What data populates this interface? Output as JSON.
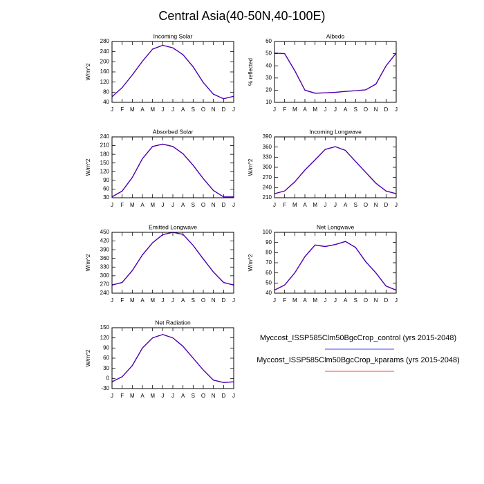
{
  "title": "Central Asia(40-50N,40-100E)",
  "chart_data": [
    {
      "type": "line",
      "title": "Incoming Solar",
      "ylabel": "W/m^2",
      "categories": [
        "J",
        "F",
        "M",
        "A",
        "M",
        "J",
        "J",
        "A",
        "S",
        "O",
        "N",
        "D",
        "J"
      ],
      "ylim": [
        40,
        280
      ],
      "yticks": [
        40,
        80,
        120,
        160,
        200,
        240,
        280
      ],
      "series": [
        {
          "name": "Myccost_ISSP585Clm50BgcCrop_control (yrs 2015-2048)",
          "color": "#0000ff",
          "values": [
            62,
            98,
            148,
            202,
            250,
            265,
            255,
            228,
            180,
            118,
            72,
            54,
            64
          ]
        },
        {
          "name": "Myccost_ISSP585Clm50BgcCrop_kparams (yrs 2015-2048)",
          "color": "#ff0000",
          "values": [
            62,
            98,
            148,
            202,
            250,
            265,
            255,
            228,
            180,
            118,
            72,
            54,
            64
          ]
        }
      ]
    },
    {
      "type": "line",
      "title": "Albedo",
      "ylabel": "% reflected",
      "categories": [
        "J",
        "F",
        "M",
        "A",
        "M",
        "J",
        "J",
        "A",
        "S",
        "O",
        "N",
        "D",
        "J"
      ],
      "ylim": [
        10,
        60
      ],
      "yticks": [
        10,
        20,
        30,
        40,
        50,
        60
      ],
      "series": [
        {
          "color": "#0000ff",
          "values": [
            50.5,
            50,
            36,
            20,
            17.5,
            17.8,
            18.2,
            19,
            19.5,
            20.3,
            25,
            40,
            50.5
          ]
        },
        {
          "color": "#ff0000",
          "values": [
            50.5,
            50,
            36,
            20,
            17.5,
            17.8,
            18.2,
            19,
            19.5,
            20.3,
            25,
            40,
            50.5
          ]
        }
      ]
    },
    {
      "type": "line",
      "title": "Absorbed Solar",
      "ylabel": "W/m^2",
      "categories": [
        "J",
        "F",
        "M",
        "A",
        "M",
        "J",
        "J",
        "A",
        "S",
        "O",
        "N",
        "D",
        "J"
      ],
      "ylim": [
        30,
        240
      ],
      "yticks": [
        30,
        60,
        90,
        120,
        150,
        180,
        210,
        240
      ],
      "series": [
        {
          "color": "#0000ff",
          "values": [
            33,
            53,
            100,
            165,
            207,
            215,
            207,
            182,
            142,
            96,
            55,
            33,
            33
          ]
        },
        {
          "color": "#ff0000",
          "values": [
            33,
            53,
            100,
            165,
            207,
            215,
            207,
            182,
            142,
            96,
            55,
            33,
            33
          ]
        }
      ]
    },
    {
      "type": "line",
      "title": "Incoming Longwave",
      "ylabel": "W/m^2",
      "categories": [
        "J",
        "F",
        "M",
        "A",
        "M",
        "J",
        "J",
        "A",
        "S",
        "O",
        "N",
        "D",
        "J"
      ],
      "ylim": [
        210,
        390
      ],
      "yticks": [
        210,
        240,
        270,
        300,
        330,
        360,
        390
      ],
      "series": [
        {
          "color": "#0000ff",
          "values": [
            222,
            230,
            257,
            292,
            322,
            353,
            361,
            350,
            317,
            285,
            253,
            230,
            222
          ]
        },
        {
          "color": "#ff0000",
          "values": [
            222,
            230,
            257,
            292,
            322,
            353,
            361,
            350,
            317,
            285,
            253,
            230,
            222
          ]
        }
      ]
    },
    {
      "type": "line",
      "title": "Emitted Longwave",
      "ylabel": "W/m^2",
      "categories": [
        "J",
        "F",
        "M",
        "A",
        "M",
        "J",
        "J",
        "A",
        "S",
        "O",
        "N",
        "D",
        "J"
      ],
      "ylim": [
        240,
        450
      ],
      "yticks": [
        240,
        270,
        300,
        330,
        360,
        390,
        420,
        450
      ],
      "series": [
        {
          "color": "#0000ff",
          "values": [
            268,
            277,
            318,
            372,
            414,
            442,
            450,
            443,
            405,
            358,
            313,
            277,
            268
          ]
        },
        {
          "color": "#ff0000",
          "values": [
            268,
            277,
            318,
            372,
            414,
            442,
            450,
            443,
            405,
            358,
            313,
            277,
            268
          ]
        }
      ]
    },
    {
      "type": "line",
      "title": "Net Longwave",
      "ylabel": "W/m^2",
      "categories": [
        "J",
        "F",
        "M",
        "A",
        "M",
        "J",
        "J",
        "A",
        "S",
        "O",
        "N",
        "D",
        "J"
      ],
      "ylim": [
        40,
        100
      ],
      "yticks": [
        40,
        50,
        60,
        70,
        80,
        90,
        100
      ],
      "series": [
        {
          "color": "#0000ff",
          "values": [
            43,
            48,
            60,
            76,
            87.5,
            86,
            88,
            91,
            85,
            71,
            60,
            47,
            43
          ]
        },
        {
          "color": "#ff0000",
          "values": [
            43,
            48,
            60,
            76,
            87.5,
            86,
            88,
            91,
            85,
            71,
            60,
            47,
            43
          ]
        }
      ]
    },
    {
      "type": "line",
      "title": "Net Radiation",
      "ylabel": "W/m^2",
      "categories": [
        "J",
        "F",
        "M",
        "A",
        "M",
        "J",
        "J",
        "A",
        "S",
        "O",
        "N",
        "D",
        "J"
      ],
      "ylim": [
        -30,
        150
      ],
      "yticks": [
        -30,
        0,
        30,
        60,
        90,
        120,
        150
      ],
      "series": [
        {
          "color": "#0000ff",
          "values": [
            -10,
            5,
            38,
            90,
            120,
            130,
            120,
            95,
            60,
            25,
            -5,
            -12,
            -10
          ]
        },
        {
          "color": "#ff0000",
          "values": [
            -10,
            5,
            38,
            90,
            120,
            130,
            120,
            95,
            60,
            25,
            -5,
            -12,
            -10
          ]
        }
      ]
    }
  ]
}
